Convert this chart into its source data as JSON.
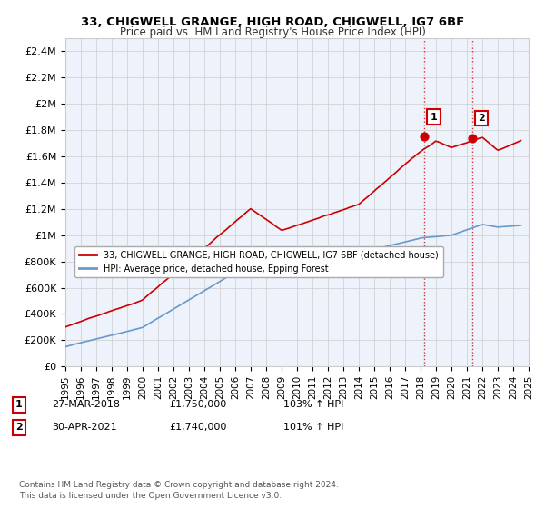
{
  "title": "33, CHIGWELL GRANGE, HIGH ROAD, CHIGWELL, IG7 6BF",
  "subtitle": "Price paid vs. HM Land Registry's House Price Index (HPI)",
  "ylabel_ticks": [
    "£0",
    "£200K",
    "£400K",
    "£600K",
    "£800K",
    "£1M",
    "£1.2M",
    "£1.4M",
    "£1.6M",
    "£1.8M",
    "£2M",
    "£2.2M",
    "£2.4M"
  ],
  "ytick_values": [
    0,
    200000,
    400000,
    600000,
    800000,
    1000000,
    1200000,
    1400000,
    1600000,
    1800000,
    2000000,
    2200000,
    2400000
  ],
  "ylim": [
    0,
    2500000
  ],
  "xlim_start": 1995,
  "xlim_end": 2025,
  "legend_line1": "33, CHIGWELL GRANGE, HIGH ROAD, CHIGWELL, IG7 6BF (detached house)",
  "legend_line2": "HPI: Average price, detached house, Epping Forest",
  "annotation1_label": "1",
  "annotation1_date": "27-MAR-2018",
  "annotation1_price": "£1,750,000",
  "annotation1_hpi": "103% ↑ HPI",
  "annotation1_year": 2018.25,
  "annotation1_value": 1750000,
  "annotation2_label": "2",
  "annotation2_date": "30-APR-2021",
  "annotation2_price": "£1,740,000",
  "annotation2_hpi": "101% ↑ HPI",
  "annotation2_year": 2021.33,
  "annotation2_value": 1740000,
  "footer1": "Contains HM Land Registry data © Crown copyright and database right 2024.",
  "footer2": "This data is licensed under the Open Government Licence v3.0.",
  "red_color": "#cc0000",
  "blue_color": "#6699cc",
  "background_color": "#eef2fb",
  "grid_color": "#cccccc",
  "shade_color": "#dce8f8"
}
